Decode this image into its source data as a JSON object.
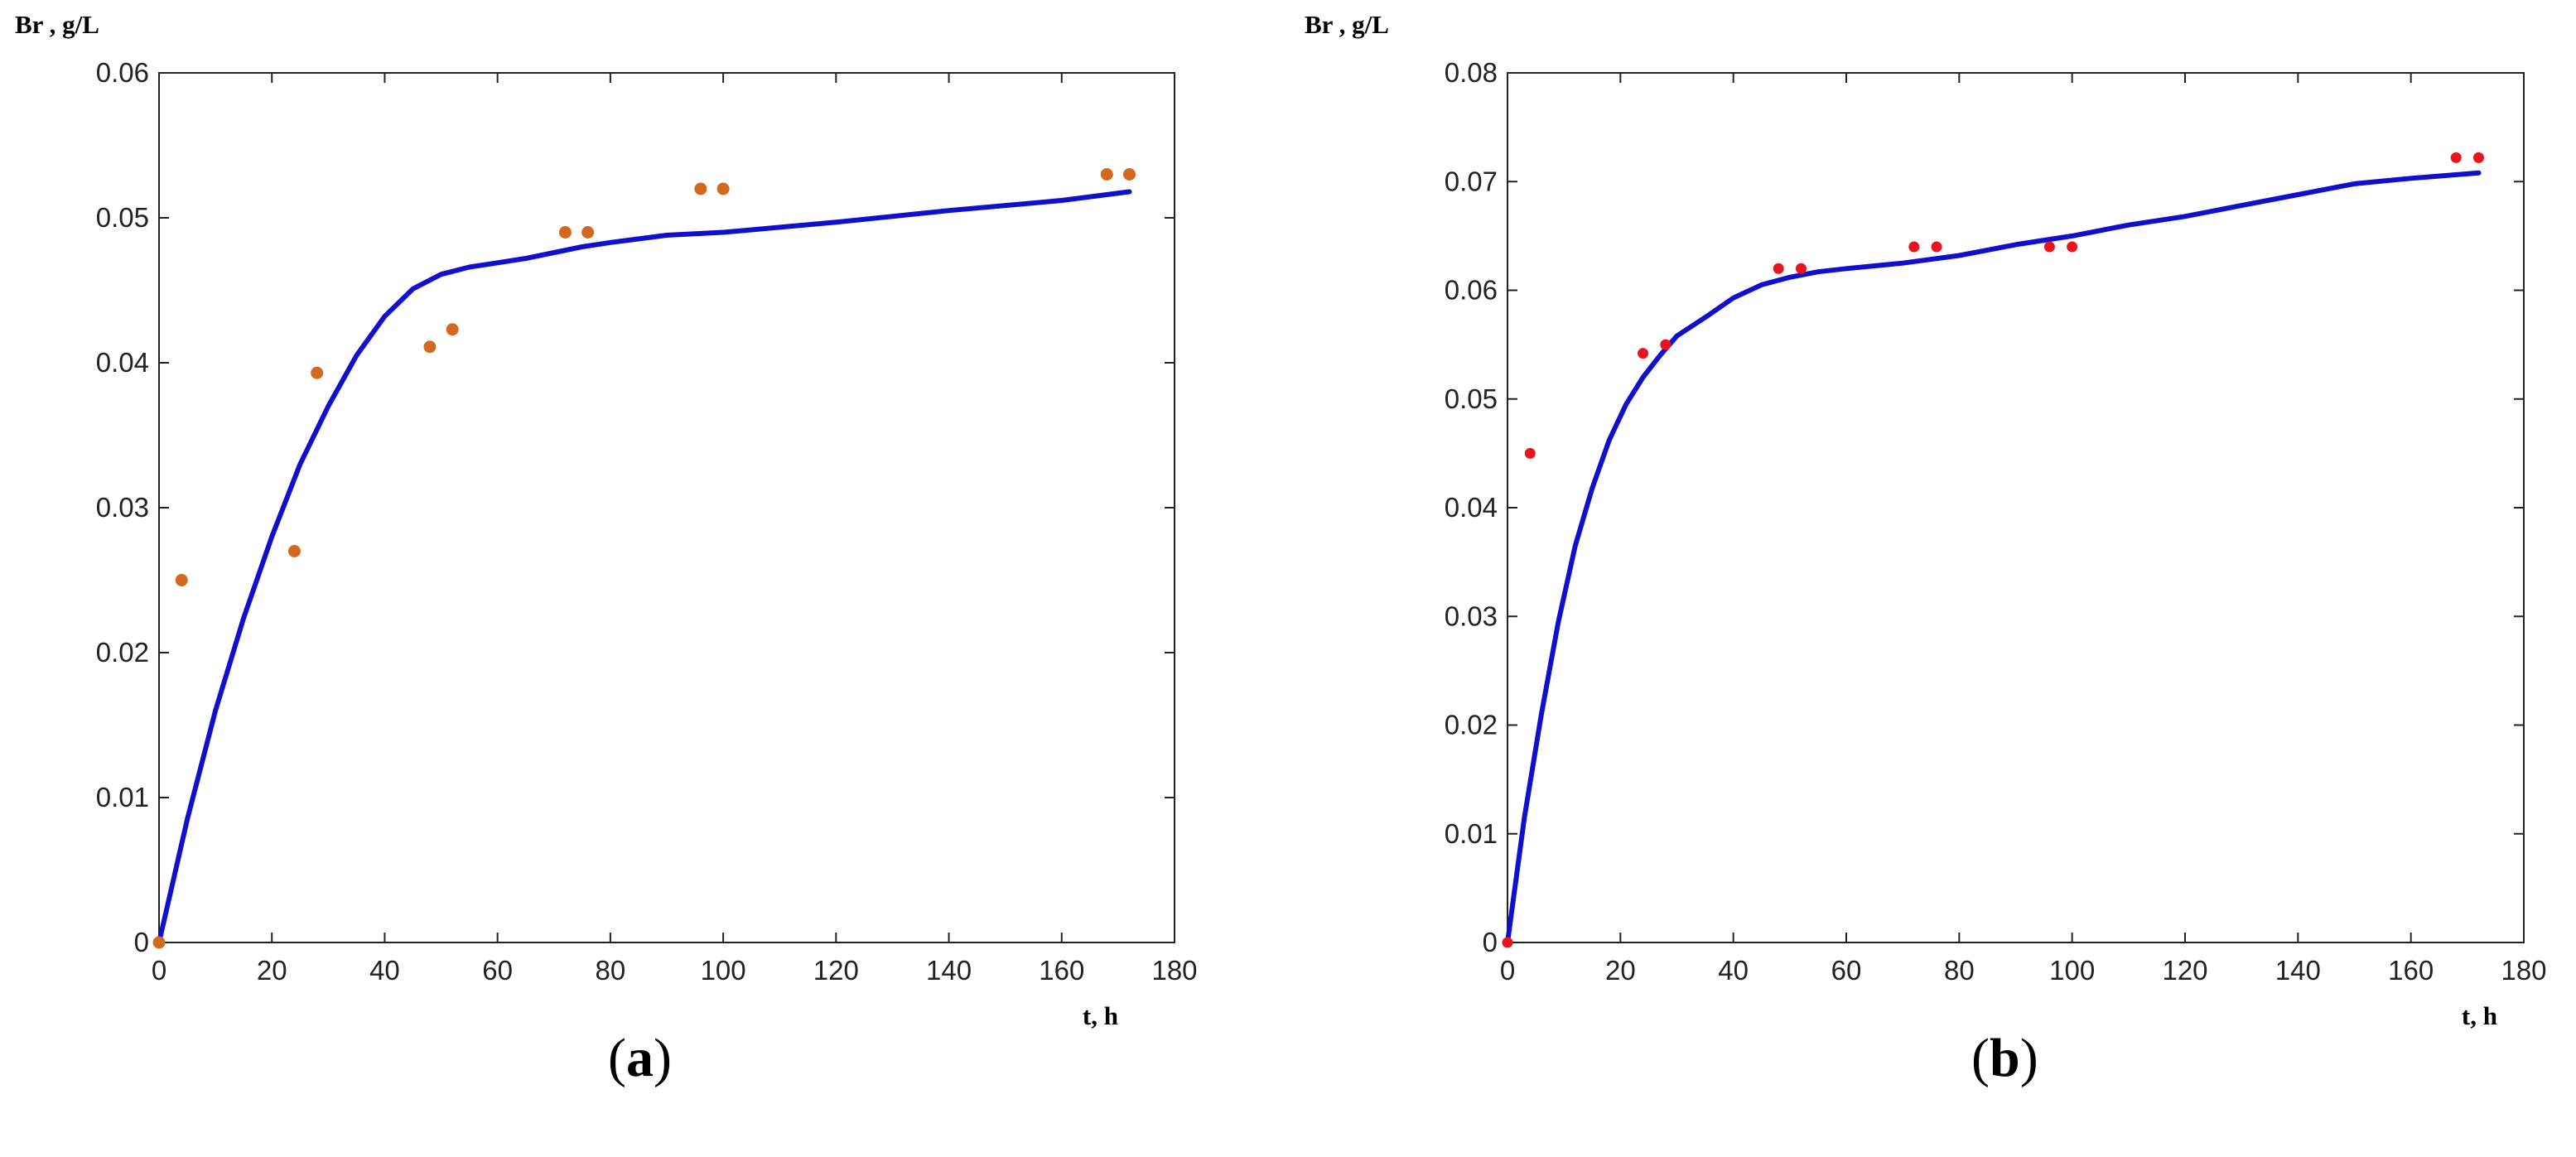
{
  "chart_data": [
    {
      "type": "scatter",
      "panel_label": "a",
      "ylabel": "Br , g/L",
      "xlabel": "t, h",
      "xlim": [
        0,
        180
      ],
      "ylim": [
        0,
        0.06
      ],
      "xticks": [
        "0",
        "20",
        "40",
        "60",
        "80",
        "100",
        "120",
        "140",
        "160",
        "180"
      ],
      "yticks": [
        "0",
        "0.01",
        "0.02",
        "0.03",
        "0.04",
        "0.05",
        "0.06"
      ],
      "grid": false,
      "series": [
        {
          "kind": "points",
          "color": "#D2691E",
          "points": [
            [
              0,
              0
            ],
            [
              4,
              0.025
            ],
            [
              24,
              0.027
            ],
            [
              28,
              0.0393
            ],
            [
              48,
              0.0411
            ],
            [
              52,
              0.0423
            ],
            [
              72,
              0.049
            ],
            [
              76,
              0.049
            ],
            [
              96,
              0.052
            ],
            [
              100,
              0.052
            ],
            [
              168,
              0.053
            ],
            [
              172,
              0.053
            ]
          ]
        },
        {
          "kind": "line",
          "color": "#1010CC",
          "points": [
            [
              0,
              0
            ],
            [
              5,
              0.0085
            ],
            [
              10,
              0.016
            ],
            [
              15,
              0.0224
            ],
            [
              20,
              0.028
            ],
            [
              25,
              0.033
            ],
            [
              30,
              0.037
            ],
            [
              35,
              0.0405
            ],
            [
              40,
              0.0432
            ],
            [
              45,
              0.0451
            ],
            [
              50,
              0.0461
            ],
            [
              55,
              0.0466
            ],
            [
              60,
              0.0469
            ],
            [
              65,
              0.0472
            ],
            [
              70,
              0.0476
            ],
            [
              75,
              0.048
            ],
            [
              80,
              0.0483
            ],
            [
              90,
              0.0488
            ],
            [
              100,
              0.049
            ],
            [
              120,
              0.0497
            ],
            [
              140,
              0.0505
            ],
            [
              160,
              0.0512
            ],
            [
              172,
              0.0518
            ]
          ]
        }
      ]
    },
    {
      "type": "scatter",
      "panel_label": "b",
      "ylabel": "Br , g/L",
      "xlabel": "t, h",
      "xlim": [
        0,
        180
      ],
      "ylim": [
        0,
        0.08
      ],
      "xticks": [
        "0",
        "20",
        "40",
        "60",
        "80",
        "100",
        "120",
        "140",
        "160",
        "180"
      ],
      "yticks": [
        "0",
        "0.01",
        "0.02",
        "0.03",
        "0.04",
        "0.05",
        "0.06",
        "0.07",
        "0.08"
      ],
      "grid": false,
      "series": [
        {
          "kind": "points",
          "color": "#E8141E",
          "points": [
            [
              0,
              0
            ],
            [
              4,
              0.045
            ],
            [
              24,
              0.0542
            ],
            [
              28,
              0.055
            ],
            [
              48,
              0.062
            ],
            [
              52,
              0.062
            ],
            [
              72,
              0.064
            ],
            [
              76,
              0.064
            ],
            [
              96,
              0.064
            ],
            [
              100,
              0.064
            ],
            [
              168,
              0.0722
            ],
            [
              172,
              0.0722
            ]
          ]
        },
        {
          "kind": "line",
          "color": "#1010CC",
          "points": [
            [
              0,
              0
            ],
            [
              3,
              0.0115
            ],
            [
              6,
              0.021
            ],
            [
              9,
              0.0295
            ],
            [
              12,
              0.0365
            ],
            [
              15,
              0.0418
            ],
            [
              18,
              0.0462
            ],
            [
              21,
              0.0495
            ],
            [
              24,
              0.052
            ],
            [
              27,
              0.054
            ],
            [
              30,
              0.0558
            ],
            [
              35,
              0.0575
            ],
            [
              40,
              0.0593
            ],
            [
              45,
              0.0605
            ],
            [
              50,
              0.0612
            ],
            [
              55,
              0.0617
            ],
            [
              60,
              0.062
            ],
            [
              70,
              0.0625
            ],
            [
              80,
              0.0632
            ],
            [
              90,
              0.0642
            ],
            [
              100,
              0.065
            ],
            [
              110,
              0.066
            ],
            [
              120,
              0.0668
            ],
            [
              130,
              0.0678
            ],
            [
              140,
              0.0688
            ],
            [
              150,
              0.0698
            ],
            [
              160,
              0.0703
            ],
            [
              172,
              0.0708
            ]
          ]
        }
      ]
    }
  ]
}
